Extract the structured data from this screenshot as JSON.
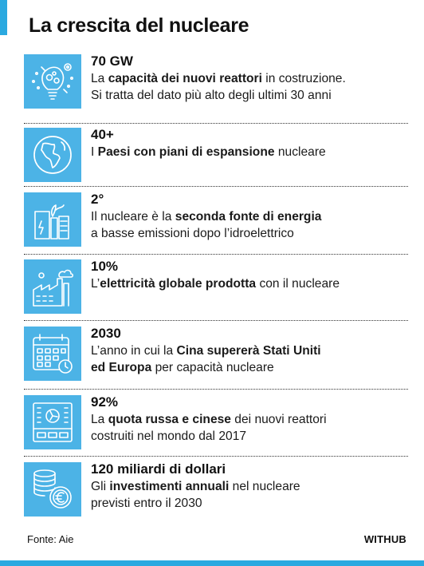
{
  "title": "La crescita del nucleare",
  "items": [
    {
      "value": "70 GW",
      "icon": "lightbulb-gears-icon",
      "desc": [
        {
          "t": "La ",
          "b": false
        },
        {
          "t": "capacità dei nuovi reattori",
          "b": true
        },
        {
          "t": " in costruzione.",
          "b": false
        },
        {
          "br": true
        },
        {
          "t": "Si tratta del dato più alto degli ultimi 30 anni",
          "b": false
        }
      ]
    },
    {
      "value": "40+",
      "icon": "globe-icon",
      "desc": [
        {
          "t": "I ",
          "b": false
        },
        {
          "t": "Paesi con piani di espansione",
          "b": true
        },
        {
          "t": " nucleare",
          "b": false
        }
      ]
    },
    {
      "value": "2°",
      "icon": "energy-plant-icon",
      "desc": [
        {
          "t": "Il nucleare è la ",
          "b": false
        },
        {
          "t": "seconda fonte di energia",
          "b": true
        },
        {
          "br": true
        },
        {
          "t": "a basse emissioni dopo l’idroelettrico",
          "b": false
        }
      ]
    },
    {
      "value": "10%",
      "icon": "factory-icon",
      "desc": [
        {
          "t": "L’",
          "b": false
        },
        {
          "t": "elettricità globale prodotta",
          "b": true
        },
        {
          "t": " con il nucleare",
          "b": false
        }
      ]
    },
    {
      "value": "2030",
      "icon": "calendar-clock-icon",
      "desc": [
        {
          "t": "L’anno in cui la ",
          "b": false
        },
        {
          "t": "Cina supererà Stati Uniti",
          "b": true
        },
        {
          "br": true
        },
        {
          "t": "ed Europa",
          "b": true
        },
        {
          "t": " per capacità nucleare",
          "b": false
        }
      ]
    },
    {
      "value": "92%",
      "icon": "reactor-panel-icon",
      "desc": [
        {
          "t": "La ",
          "b": false
        },
        {
          "t": "quota russa e cinese",
          "b": true
        },
        {
          "t": " dei nuovi reattori",
          "b": false
        },
        {
          "br": true
        },
        {
          "t": "costruiti nel mondo dal 2017",
          "b": false
        }
      ]
    },
    {
      "value": "120 miliardi di dollari",
      "icon": "euro-coins-icon",
      "desc": [
        {
          "t": "Gli ",
          "b": false
        },
        {
          "t": "investimenti annuali",
          "b": true
        },
        {
          "t": " nel nucleare",
          "b": false
        },
        {
          "br": true
        },
        {
          "t": "previsti entro il 2030",
          "b": false
        }
      ]
    }
  ],
  "source": "Fonte: Aie",
  "brand": "WITHUB",
  "colors": {
    "accent": "#2aa9e0",
    "icon_bg": "#4cb3e6"
  }
}
